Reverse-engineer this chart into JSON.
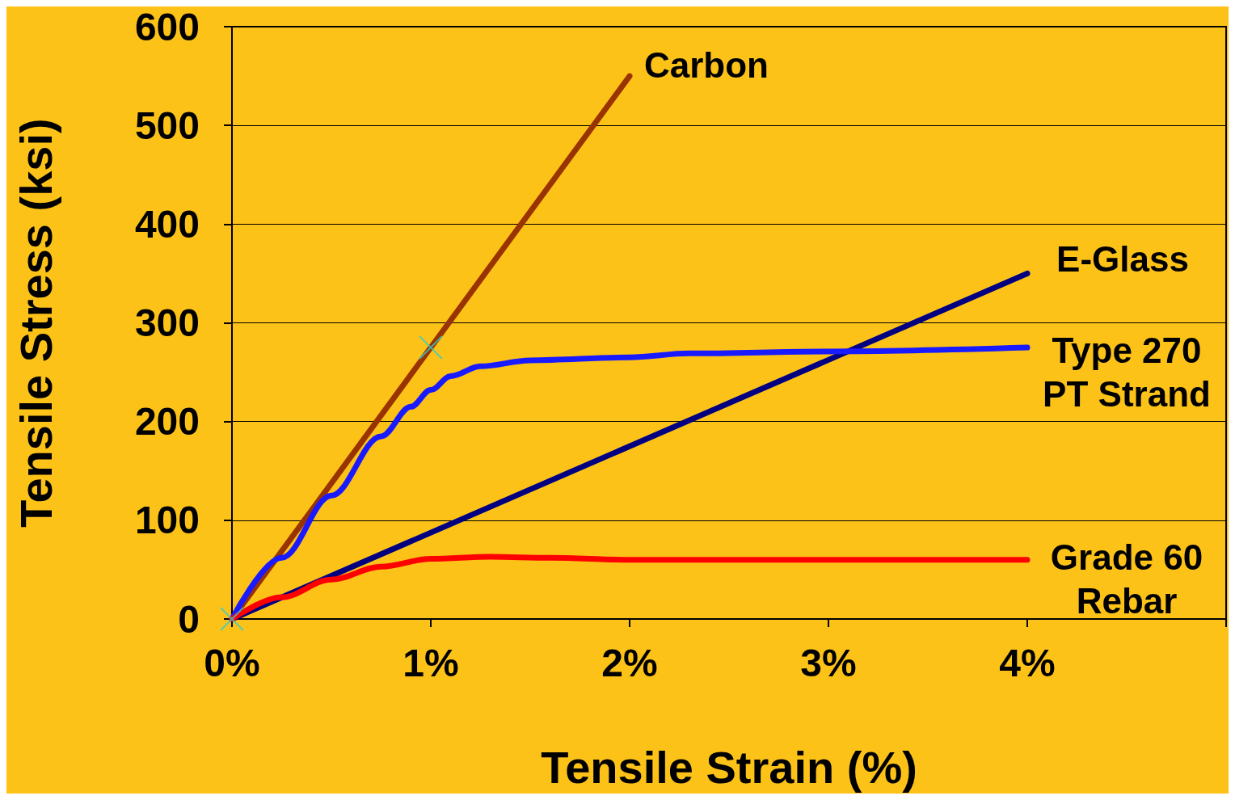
{
  "chart_data": {
    "type": "line",
    "xlabel": "Tensile Strain (%)",
    "ylabel": "Tensile Stress (ksi)",
    "xlim": [
      0,
      5
    ],
    "xticks": [
      {
        "value": 0,
        "label": "0%"
      },
      {
        "value": 1,
        "label": "1%"
      },
      {
        "value": 2,
        "label": "2%"
      },
      {
        "value": 3,
        "label": "3%"
      },
      {
        "value": 4,
        "label": "4%"
      },
      {
        "value": 5,
        "label": null
      }
    ],
    "ylim": [
      0,
      600
    ],
    "yticks": [
      0,
      100,
      200,
      300,
      400,
      500,
      600
    ],
    "grid": "y",
    "line_style": "solid",
    "series": [
      {
        "name": "Carbon",
        "color": "#993300",
        "x": [
          0,
          2
        ],
        "values": [
          0,
          550
        ]
      },
      {
        "name": "E-Glass",
        "color": "#000080",
        "x": [
          0,
          4
        ],
        "values": [
          0,
          350
        ]
      },
      {
        "name": "Type 270\nPT Strand",
        "color": "#1a1aff",
        "x": [
          0,
          0.25,
          0.5,
          0.75,
          0.9,
          1,
          1.1,
          1.25,
          1.5,
          2,
          2.3,
          3,
          4
        ],
        "values": [
          0,
          62,
          125,
          185,
          215,
          232,
          246,
          256,
          262,
          265,
          269,
          271,
          275
        ]
      },
      {
        "name": "Grade 60\nRebar",
        "color": "#ff0000",
        "x": [
          0,
          0.25,
          0.5,
          0.75,
          1,
          1.3,
          1.6,
          2,
          4
        ],
        "values": [
          0,
          22,
          40,
          53,
          61,
          63,
          62,
          60,
          60
        ]
      },
      {
        "type": "scatter",
        "marker": "cross",
        "color": "#33cccc",
        "x": [
          0,
          1
        ],
        "values": [
          0,
          275
        ]
      }
    ]
  }
}
